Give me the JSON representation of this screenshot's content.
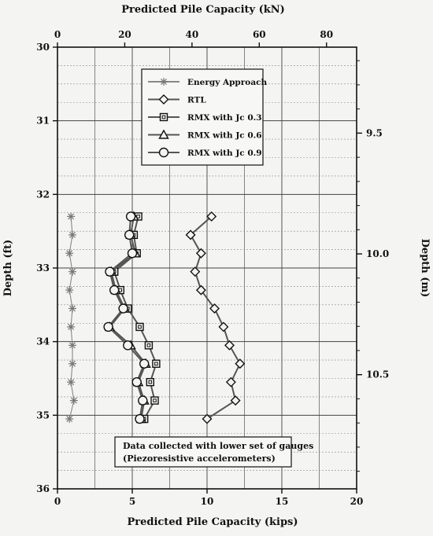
{
  "chart_data": {
    "type": "line",
    "title_top": "Predicted Pile Capacity (kN)",
    "xlabel": "Predicted Pile Capacity (kips)",
    "ylabel_left": "Depth (ft)",
    "ylabel_right": "Depth (m)",
    "xlim": [
      0,
      20
    ],
    "ylim": [
      30,
      36
    ],
    "x_ticks": [
      "0",
      "5",
      "10",
      "15",
      "20"
    ],
    "y_ticks": [
      "30",
      "31",
      "32",
      "33",
      "34",
      "35",
      "36"
    ],
    "top_ticks": [
      {
        "value": 0,
        "label": "0"
      },
      {
        "value": 20,
        "label": "20"
      },
      {
        "value": 40,
        "label": "40"
      },
      {
        "value": 60,
        "label": "60"
      },
      {
        "value": 80,
        "label": "80"
      }
    ],
    "right_ticks": [
      {
        "value": 9.5,
        "label": "9.5"
      },
      {
        "value": 10.0,
        "label": "10.0"
      },
      {
        "value": 10.5,
        "label": "10.5"
      }
    ],
    "annotation": [
      "Data collected with lower set of gauges",
      "(Piezoresistive accelerometers)"
    ],
    "series": [
      {
        "name": "Energy Approach",
        "marker": "asterisk",
        "x": [
          0.9,
          1.0,
          0.8,
          1.0,
          0.8,
          1.0,
          0.9,
          1.0,
          1.0,
          0.9,
          1.1,
          0.8
        ],
        "y": [
          32.3,
          32.55,
          32.8,
          33.05,
          33.3,
          33.55,
          33.8,
          34.05,
          34.3,
          34.55,
          34.8,
          35.05
        ]
      },
      {
        "name": "RTL",
        "marker": "diamond",
        "x": [
          10.3,
          8.9,
          9.6,
          9.2,
          9.6,
          10.5,
          11.1,
          11.5,
          12.2,
          11.6,
          11.9,
          10.0
        ],
        "y": [
          32.3,
          32.55,
          32.8,
          33.05,
          33.3,
          33.55,
          33.8,
          34.05,
          34.3,
          34.55,
          34.8,
          35.05
        ]
      },
      {
        "name": "RMX with Jc 0.3",
        "marker": "square",
        "x": [
          5.4,
          5.1,
          5.3,
          3.8,
          4.2,
          4.7,
          5.5,
          6.1,
          6.6,
          6.2,
          6.5,
          5.8
        ],
        "y": [
          32.3,
          32.55,
          32.8,
          33.05,
          33.3,
          33.55,
          33.8,
          34.05,
          34.3,
          34.55,
          34.8,
          35.05
        ]
      },
      {
        "name": "RMX with Jc 0.6",
        "marker": "triangle",
        "x": [
          5.1,
          4.9,
          5.2,
          3.6,
          3.9,
          4.5,
          3.5,
          4.9,
          5.9,
          5.4,
          5.8,
          5.6
        ],
        "y": [
          32.3,
          32.55,
          32.8,
          33.05,
          33.3,
          33.55,
          33.8,
          34.05,
          34.3,
          34.55,
          34.8,
          35.05
        ]
      },
      {
        "name": "RMX with Jc 0.9",
        "marker": "circle",
        "x": [
          4.9,
          4.8,
          5.0,
          3.5,
          3.8,
          4.4,
          3.4,
          4.7,
          5.8,
          5.3,
          5.7,
          5.5
        ],
        "y": [
          32.3,
          32.55,
          32.8,
          33.05,
          33.3,
          33.55,
          33.8,
          34.05,
          34.3,
          34.55,
          34.8,
          35.05
        ]
      }
    ]
  }
}
